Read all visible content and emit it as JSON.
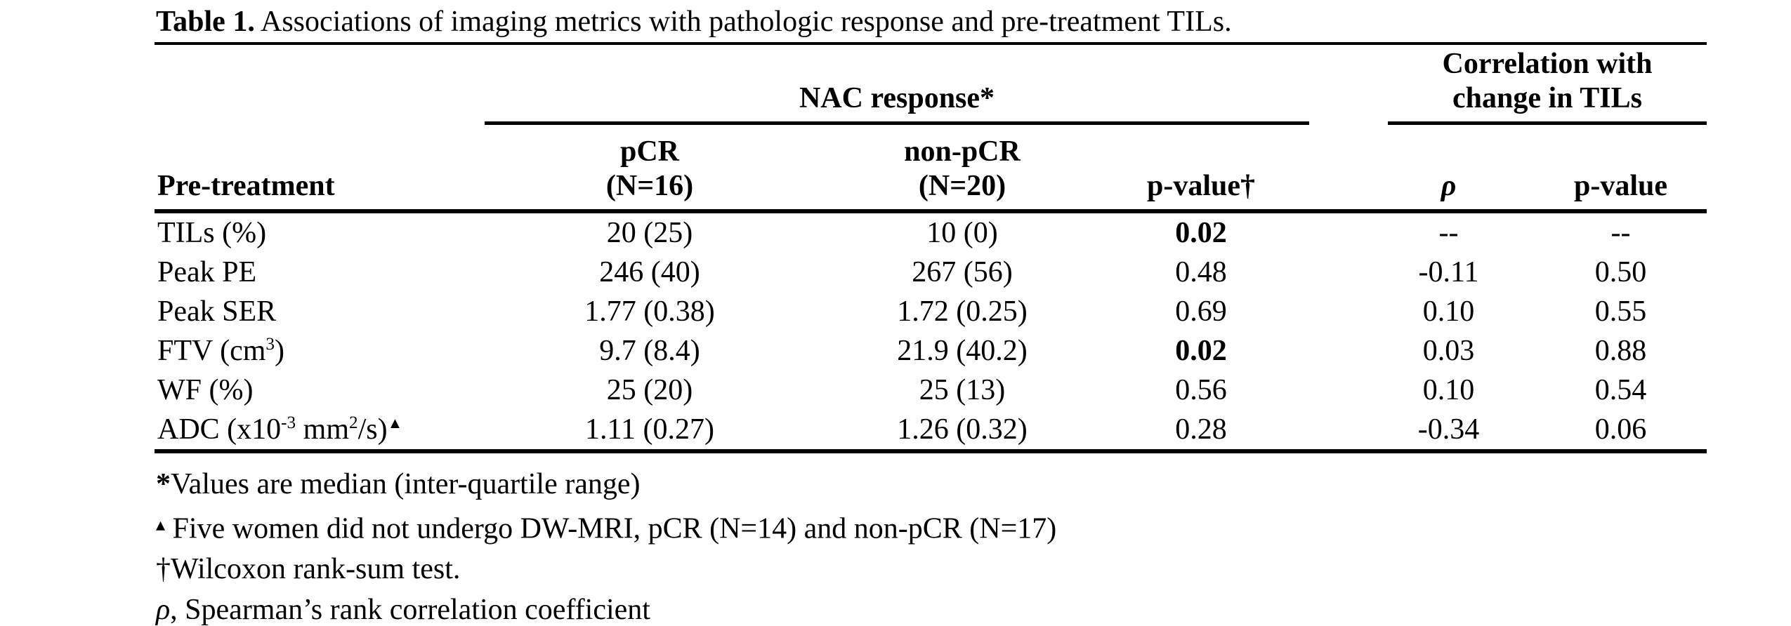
{
  "title": {
    "label": "Table 1.",
    "caption": " Associations of imaging metrics with pathologic response and pre-treatment TILs."
  },
  "table": {
    "group_headers": {
      "nac": "NAC response*",
      "corr_line1": "Correlation with",
      "corr_line2": "change in TILs"
    },
    "col_headers": {
      "stub": "Pre-treatment",
      "pcr_line1": "pCR",
      "pcr_line2": "(N=16)",
      "nonpcr_line1": "non-pCR",
      "nonpcr_line2": "(N=20)",
      "pvalue_nac": "p-value†",
      "rho": "ρ",
      "pvalue_corr": "p-value"
    },
    "rows": [
      {
        "label_parts": [
          [
            "t",
            "TILs (%)"
          ]
        ],
        "pcr": "20 (25)",
        "nonpcr": "10 (0)",
        "pvalue": "0.02",
        "pvalue_bold": true,
        "rho": "--",
        "rho_pvalue": "--"
      },
      {
        "label_parts": [
          [
            "t",
            "Peak PE"
          ]
        ],
        "pcr": "246 (40)",
        "nonpcr": "267 (56)",
        "pvalue": "0.48",
        "pvalue_bold": false,
        "rho": "-0.11",
        "rho_pvalue": "0.50"
      },
      {
        "label_parts": [
          [
            "t",
            "Peak SER"
          ]
        ],
        "pcr": "1.77 (0.38)",
        "nonpcr": "1.72 (0.25)",
        "pvalue": "0.69",
        "pvalue_bold": false,
        "rho": "0.10",
        "rho_pvalue": "0.55"
      },
      {
        "label_parts": [
          [
            "t",
            "FTV (cm"
          ],
          [
            "s",
            "3"
          ],
          [
            "t",
            ")"
          ]
        ],
        "pcr": "9.7 (8.4)",
        "nonpcr": "21.9 (40.2)",
        "pvalue": "0.02",
        "pvalue_bold": true,
        "rho": "0.03",
        "rho_pvalue": "0.88"
      },
      {
        "label_parts": [
          [
            "t",
            "WF (%)"
          ]
        ],
        "pcr": "25 (20)",
        "nonpcr": "25 (13)",
        "pvalue": "0.56",
        "pvalue_bold": false,
        "rho": "0.10",
        "rho_pvalue": "0.54"
      },
      {
        "label_parts": [
          [
            "t",
            "ADC (x10"
          ],
          [
            "s",
            "-3"
          ],
          [
            "t",
            " mm"
          ],
          [
            "s",
            "2"
          ],
          [
            "t",
            "/s)"
          ],
          [
            "st",
            "▲"
          ]
        ],
        "pcr": "1.11 (0.27)",
        "nonpcr": "1.26 (0.32)",
        "pvalue": "0.28",
        "pvalue_bold": false,
        "rho": "-0.34",
        "rho_pvalue": "0.06"
      }
    ]
  },
  "footnotes": {
    "f1": {
      "prefix": "*",
      "text": "Values are median (inter-quartile range)"
    },
    "f2": {
      "prefix": "▴",
      "text": " Five women did not undergo DW-MRI, pCR (N=14) and non-pCR (N=17)"
    },
    "f3": {
      "prefix": "†",
      "text": "Wilcoxon rank-sum test."
    },
    "f4": {
      "prefix": "ρ",
      "text": ", Spearman’s rank correlation coefficient"
    }
  }
}
